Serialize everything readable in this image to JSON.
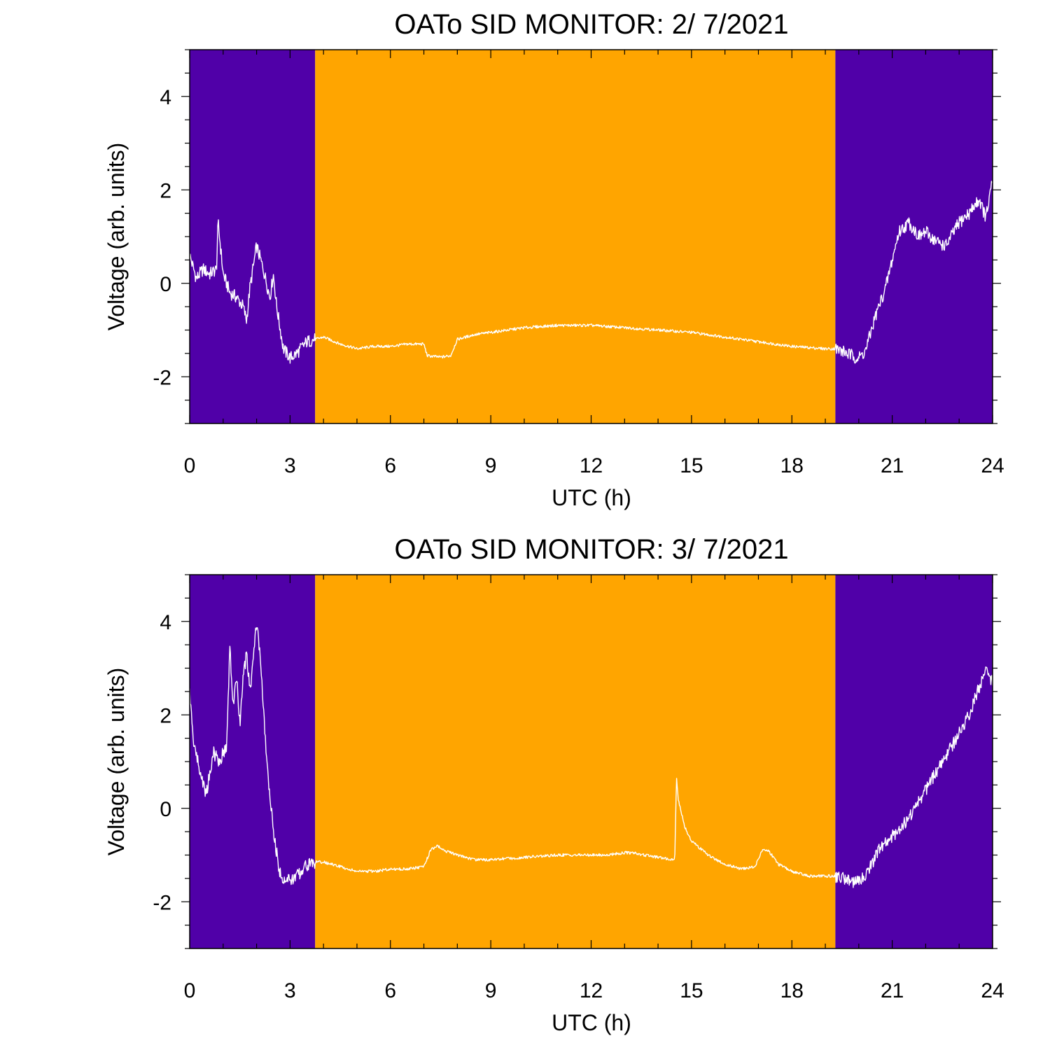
{
  "colors": {
    "night": "#5000A8",
    "day": "#FFA500",
    "signal": "#FFFFFF",
    "axis": "#000000",
    "background": "#FFFFFF"
  },
  "chart_data": [
    {
      "type": "line",
      "title": "OATo SID MONITOR:  2/ 7/2021",
      "xlabel": "UTC (h)",
      "ylabel": "Voltage (arb. units)",
      "xlim": [
        0,
        24
      ],
      "ylim": [
        -3,
        5
      ],
      "xticks": [
        0,
        3,
        6,
        9,
        12,
        15,
        18,
        21,
        24
      ],
      "xtick_labels": [
        "0",
        "3",
        "6",
        "9",
        "12",
        "15",
        "18",
        "21",
        "24"
      ],
      "yticks": [
        -2,
        0,
        2,
        4
      ],
      "ytick_labels": [
        "-2",
        "0",
        "2",
        "4"
      ],
      "grid": false,
      "bands": [
        {
          "label": "night",
          "x0": 0,
          "x1": 3.75
        },
        {
          "label": "day",
          "x0": 3.75,
          "x1": 19.3
        },
        {
          "label": "night",
          "x0": 19.3,
          "x1": 24
        }
      ],
      "series": [
        {
          "x": [
            0,
            0.2,
            0.4,
            0.6,
            0.8,
            0.85,
            1.0,
            1.2,
            1.4,
            1.6,
            1.7,
            1.8,
            2.0,
            2.2,
            2.4,
            2.5,
            2.6,
            2.8,
            3.0,
            3.2,
            3.5,
            3.75,
            4.0,
            4.5,
            5.0,
            5.5,
            6.0,
            6.5,
            7.0,
            7.1,
            7.5,
            7.8,
            8.0,
            8.5,
            9.0,
            10,
            11,
            12,
            13,
            14,
            15,
            16,
            17,
            18,
            19,
            19.3,
            19.5,
            19.8,
            20.0,
            20.2,
            20.5,
            20.8,
            21.0,
            21.2,
            21.5,
            21.8,
            22.0,
            22.3,
            22.6,
            23.0,
            23.3,
            23.6,
            23.8,
            24.0
          ],
          "y": [
            0.6,
            0.1,
            0.3,
            0.2,
            0.3,
            1.3,
            0.2,
            -0.2,
            -0.3,
            -0.5,
            -0.8,
            -0.1,
            0.8,
            0.3,
            -0.3,
            0.2,
            -0.5,
            -1.4,
            -1.6,
            -1.5,
            -1.25,
            -1.2,
            -1.15,
            -1.3,
            -1.4,
            -1.35,
            -1.35,
            -1.3,
            -1.3,
            -1.55,
            -1.58,
            -1.55,
            -1.2,
            -1.1,
            -1.05,
            -0.95,
            -0.9,
            -0.9,
            -0.95,
            -1.0,
            -1.05,
            -1.15,
            -1.25,
            -1.35,
            -1.4,
            -1.4,
            -1.45,
            -1.55,
            -1.6,
            -1.45,
            -0.7,
            -0.1,
            0.5,
            1.1,
            1.3,
            1.0,
            1.1,
            0.9,
            0.8,
            1.3,
            1.5,
            1.8,
            1.4,
            2.2
          ]
        }
      ]
    },
    {
      "type": "line",
      "title": "OATo SID MONITOR:  3/ 7/2021",
      "xlabel": "UTC (h)",
      "ylabel": "Voltage (arb. units)",
      "xlim": [
        0,
        24
      ],
      "ylim": [
        -3,
        5
      ],
      "xticks": [
        0,
        3,
        6,
        9,
        12,
        15,
        18,
        21,
        24
      ],
      "xtick_labels": [
        "0",
        "3",
        "6",
        "9",
        "12",
        "15",
        "18",
        "21",
        "24"
      ],
      "yticks": [
        -2,
        0,
        2,
        4
      ],
      "ytick_labels": [
        "-2",
        "0",
        "2",
        "4"
      ],
      "grid": false,
      "bands": [
        {
          "label": "night",
          "x0": 0,
          "x1": 3.75
        },
        {
          "label": "day",
          "x0": 3.75,
          "x1": 19.3
        },
        {
          "label": "night",
          "x0": 19.3,
          "x1": 24
        }
      ],
      "series": [
        {
          "x": [
            0,
            0.1,
            0.3,
            0.5,
            0.7,
            0.9,
            1.0,
            1.1,
            1.2,
            1.3,
            1.4,
            1.5,
            1.6,
            1.7,
            1.8,
            1.9,
            2.0,
            2.1,
            2.2,
            2.3,
            2.5,
            2.7,
            2.8,
            3.0,
            3.2,
            3.5,
            3.75,
            4.0,
            4.5,
            5.0,
            5.5,
            6.0,
            6.5,
            7.0,
            7.2,
            7.4,
            7.6,
            8.0,
            8.5,
            9.0,
            10,
            11,
            12,
            12.5,
            13.0,
            13.3,
            13.6,
            14.0,
            14.5,
            14.55,
            14.6,
            14.8,
            15.0,
            15.5,
            16.0,
            16.5,
            16.9,
            17.1,
            17.3,
            17.6,
            18.0,
            18.5,
            19.0,
            19.3,
            19.6,
            20.0,
            20.3,
            20.6,
            21.0,
            21.5,
            22.0,
            22.5,
            23.0,
            23.3,
            23.6,
            23.8,
            24.0
          ],
          "y": [
            2.5,
            1.5,
            0.8,
            0.3,
            1.2,
            1.0,
            1.2,
            1.3,
            3.4,
            2.2,
            2.8,
            1.8,
            2.8,
            3.3,
            2.5,
            3.2,
            4.0,
            3.3,
            2.2,
            1.0,
            -0.5,
            -1.4,
            -1.5,
            -1.55,
            -1.45,
            -1.2,
            -1.15,
            -1.15,
            -1.25,
            -1.35,
            -1.35,
            -1.3,
            -1.3,
            -1.25,
            -0.9,
            -0.8,
            -0.9,
            -1.0,
            -1.1,
            -1.1,
            -1.05,
            -1.0,
            -1.0,
            -1.0,
            -0.95,
            -0.95,
            -1.0,
            -1.05,
            -1.1,
            0.7,
            0.2,
            -0.4,
            -0.7,
            -1.0,
            -1.2,
            -1.3,
            -1.25,
            -0.9,
            -0.9,
            -1.2,
            -1.35,
            -1.45,
            -1.45,
            -1.45,
            -1.5,
            -1.6,
            -1.3,
            -0.9,
            -0.6,
            -0.2,
            0.4,
            1.0,
            1.6,
            2.0,
            2.6,
            2.9,
            2.7
          ]
        }
      ]
    }
  ]
}
